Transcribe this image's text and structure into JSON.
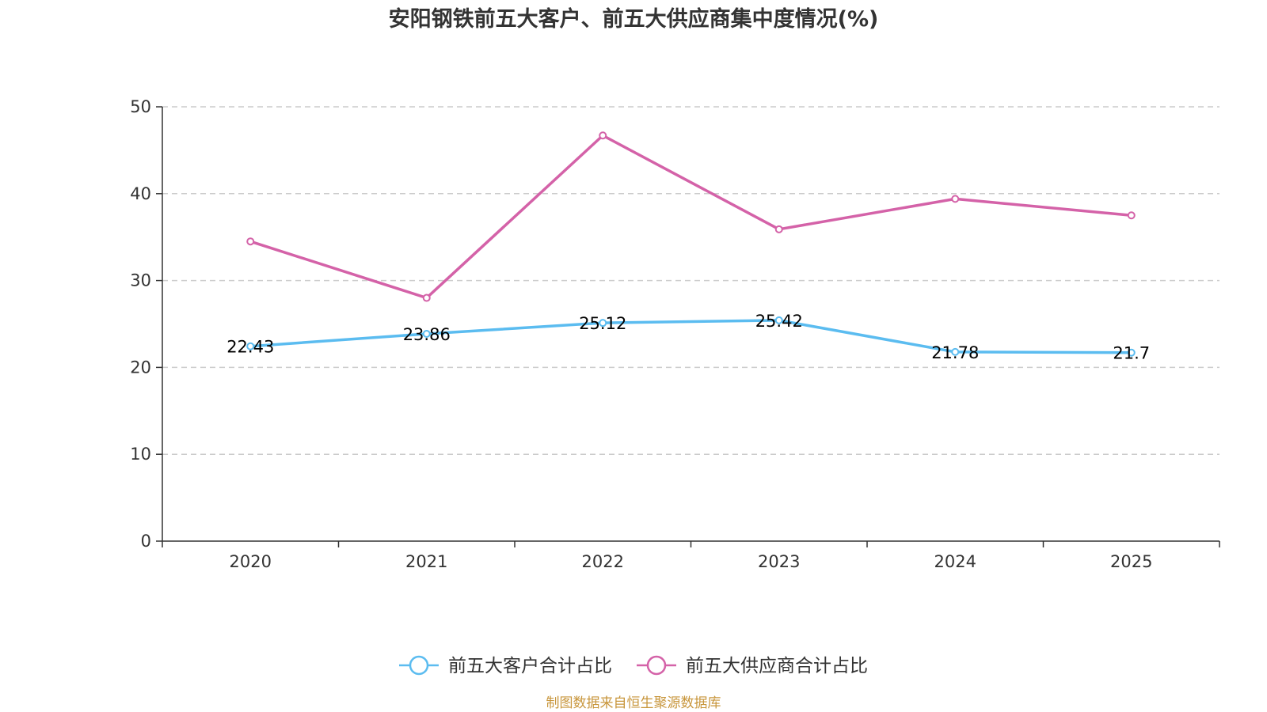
{
  "chart_data": {
    "type": "line",
    "title": "安阳钢铁前五大客户、前五大供应商集中度情况(%)",
    "categories": [
      "2020",
      "2021",
      "2022",
      "2023",
      "2024",
      "2025"
    ],
    "ylim": [
      0,
      50
    ],
    "yticks": [
      "0",
      "10",
      "20",
      "30",
      "40",
      "50"
    ],
    "grid": true,
    "legend_position": "bottom",
    "series": [
      {
        "name": "前五大客户合计占比",
        "color": "#5bbcf0",
        "values": [
          22.43,
          23.86,
          25.12,
          25.42,
          21.78,
          21.7
        ],
        "labels": [
          "22.43",
          "23.86",
          "25.12",
          "25.42",
          "21.78",
          "21.7"
        ],
        "show_labels": true
      },
      {
        "name": "前五大供应商合计占比",
        "color": "#d462a8",
        "values": [
          34.5,
          28.0,
          46.7,
          35.9,
          39.4,
          37.5
        ],
        "show_labels": false
      }
    ],
    "source": "制图数据来自恒生聚源数据库"
  }
}
